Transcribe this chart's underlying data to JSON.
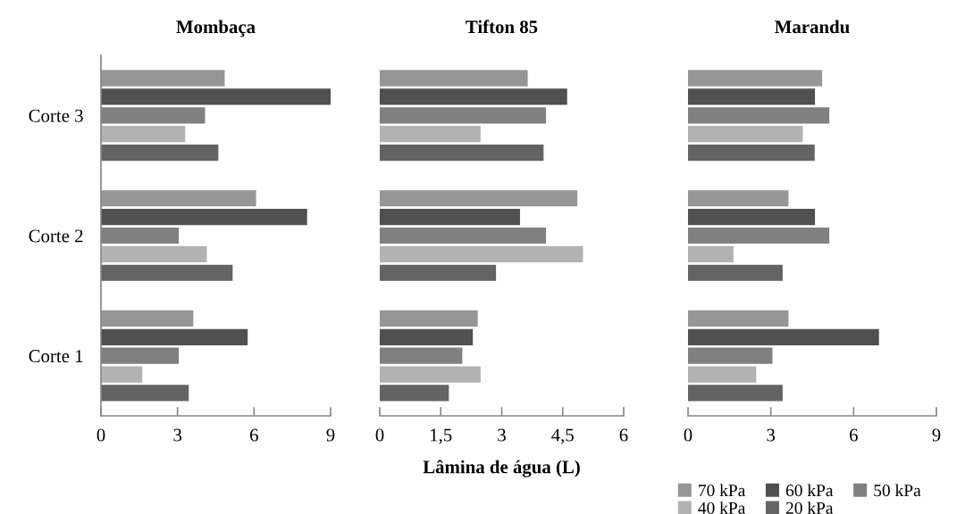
{
  "chart_data": [
    {
      "type": "bar",
      "orientation": "horizontal",
      "title": "Mombaça",
      "categories": [
        "Corte 3",
        "Corte 2",
        "Corte 1"
      ],
      "xlim": [
        0,
        9
      ],
      "xticks": [
        0,
        3,
        6,
        9
      ],
      "series": [
        {
          "color": "#969696",
          "values": [
            4.85,
            6.08,
            3.62
          ]
        },
        {
          "color": "#505050",
          "values": [
            9.0,
            8.08,
            5.75
          ]
        },
        {
          "color": "#808080",
          "values": [
            4.08,
            3.05,
            3.05
          ]
        },
        {
          "color": "#b2b2b2",
          "values": [
            3.3,
            4.15,
            1.62
          ]
        },
        {
          "color": "#636363",
          "values": [
            4.6,
            5.16,
            3.44
          ]
        }
      ]
    },
    {
      "type": "bar",
      "orientation": "horizontal",
      "title": "Tifton 85",
      "xlabel": "Lâmina de água (L)",
      "categories": [
        null,
        null,
        null
      ],
      "xlim": [
        0,
        6
      ],
      "xticks": [
        0,
        {
          "value": 1.5,
          "label": "1,5"
        },
        3,
        {
          "value": 4.5,
          "label": "4,5"
        },
        6
      ],
      "tick_labels": "x",
      "series": [
        {
          "color": "#969696",
          "values": [
            3.64,
            4.86,
            2.41
          ]
        },
        {
          "color": "#505050",
          "values": [
            4.61,
            3.45,
            2.29
          ]
        },
        {
          "color": "#808080",
          "values": [
            4.09,
            4.09,
            2.03
          ]
        },
        {
          "color": "#b2b2b2",
          "values": [
            2.48,
            5.0,
            2.48
          ]
        },
        {
          "color": "#636363",
          "values": [
            4.03,
            2.86,
            1.7
          ]
        }
      ]
    },
    {
      "type": "bar",
      "orientation": "horizontal",
      "title": "Marandu",
      "categories": [
        null,
        null,
        null
      ],
      "xlim": [
        0,
        9
      ],
      "xticks": [
        0,
        3,
        6,
        9
      ],
      "tick_labels": "x",
      "legend": "bottom",
      "series": [
        {
          "name": "70 kPa",
          "color": "#969696",
          "values": [
            4.86,
            3.64,
            3.64
          ]
        },
        {
          "name": "60 kPa",
          "color": "#505050",
          "values": [
            4.6,
            4.6,
            6.92
          ]
        },
        {
          "name": "50 kPa",
          "color": "#808080",
          "values": [
            5.12,
            5.12,
            3.06
          ]
        },
        {
          "name": "40 kPa",
          "color": "#b2b2b2",
          "values": [
            4.16,
            1.65,
            2.47
          ]
        },
        {
          "name": "20 kPa",
          "color": "#636363",
          "values": [
            4.59,
            3.43,
            3.43
          ]
        }
      ]
    }
  ]
}
